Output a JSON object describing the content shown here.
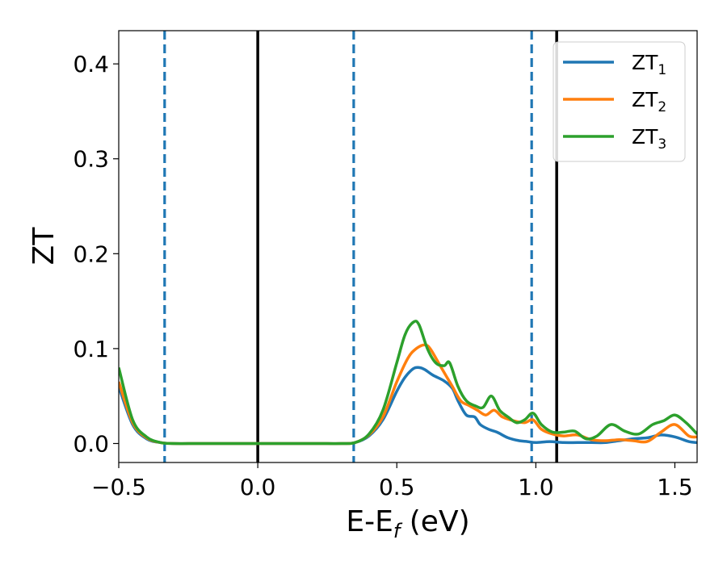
{
  "chart_data": {
    "type": "line",
    "xlabel": {
      "base": "E-E",
      "sub": "f",
      "suffix": " (eV)"
    },
    "ylabel": "ZT",
    "xlim": [
      -0.5,
      1.58
    ],
    "ylim": [
      -0.02,
      0.435
    ],
    "x_ticks": [
      -0.5,
      0.0,
      0.5,
      1.0,
      1.5
    ],
    "x_tick_labels": [
      "−0.5",
      "0.0",
      "0.5",
      "1.0",
      "1.5"
    ],
    "y_ticks": [
      0.0,
      0.1,
      0.2,
      0.3,
      0.4
    ],
    "y_tick_labels": [
      "0.0",
      "0.1",
      "0.2",
      "0.3",
      "0.4"
    ],
    "grid": false,
    "legend_position": "top-right",
    "vlines": [
      {
        "x": -0.335,
        "style": "dashed",
        "color": "#1f77b4"
      },
      {
        "x": 0.0,
        "style": "solid",
        "color": "#000000"
      },
      {
        "x": 0.345,
        "style": "dashed",
        "color": "#1f77b4"
      },
      {
        "x": 0.985,
        "style": "dashed",
        "color": "#1f77b4"
      },
      {
        "x": 1.075,
        "style": "solid",
        "color": "#000000"
      }
    ],
    "series": [
      {
        "name": "ZT",
        "name_sub": "1",
        "color": "#1f77b4",
        "x": [
          -0.5,
          -0.45,
          -0.4,
          -0.35,
          -0.3,
          -0.2,
          0.0,
          0.2,
          0.3,
          0.35,
          0.4,
          0.45,
          0.5,
          0.53,
          0.56,
          0.58,
          0.6,
          0.63,
          0.67,
          0.7,
          0.72,
          0.75,
          0.78,
          0.8,
          0.83,
          0.86,
          0.9,
          0.94,
          0.97,
          1.0,
          1.05,
          1.1,
          1.15,
          1.2,
          1.25,
          1.3,
          1.35,
          1.4,
          1.45,
          1.5,
          1.55,
          1.58
        ],
        "y": [
          0.06,
          0.02,
          0.005,
          0.001,
          0.0,
          0.0,
          0.0,
          0.0,
          0.0,
          0.001,
          0.008,
          0.025,
          0.055,
          0.07,
          0.079,
          0.08,
          0.078,
          0.072,
          0.066,
          0.058,
          0.045,
          0.03,
          0.028,
          0.02,
          0.015,
          0.012,
          0.006,
          0.003,
          0.002,
          0.001,
          0.002,
          0.001,
          0.001,
          0.001,
          0.001,
          0.003,
          0.005,
          0.006,
          0.009,
          0.007,
          0.002,
          0.001
        ]
      },
      {
        "name": "ZT",
        "name_sub": "2",
        "color": "#ff7f0e",
        "x": [
          -0.5,
          -0.45,
          -0.4,
          -0.35,
          -0.3,
          -0.2,
          0.0,
          0.2,
          0.3,
          0.35,
          0.4,
          0.45,
          0.5,
          0.54,
          0.57,
          0.6,
          0.62,
          0.65,
          0.68,
          0.7,
          0.73,
          0.76,
          0.79,
          0.82,
          0.85,
          0.88,
          0.92,
          0.96,
          0.99,
          1.02,
          1.06,
          1.1,
          1.15,
          1.2,
          1.25,
          1.3,
          1.35,
          1.4,
          1.45,
          1.5,
          1.55,
          1.58
        ],
        "y": [
          0.065,
          0.022,
          0.006,
          0.001,
          0.0,
          0.0,
          0.0,
          0.0,
          0.0,
          0.001,
          0.009,
          0.028,
          0.065,
          0.09,
          0.1,
          0.104,
          0.1,
          0.085,
          0.07,
          0.06,
          0.045,
          0.04,
          0.035,
          0.03,
          0.035,
          0.028,
          0.024,
          0.022,
          0.025,
          0.015,
          0.01,
          0.008,
          0.009,
          0.004,
          0.003,
          0.004,
          0.003,
          0.002,
          0.012,
          0.02,
          0.008,
          0.007
        ]
      },
      {
        "name": "ZT",
        "name_sub": "3",
        "color": "#2ca02c",
        "x": [
          -0.5,
          -0.45,
          -0.4,
          -0.35,
          -0.3,
          -0.2,
          0.0,
          0.2,
          0.3,
          0.35,
          0.4,
          0.45,
          0.5,
          0.53,
          0.56,
          0.58,
          0.61,
          0.64,
          0.67,
          0.69,
          0.72,
          0.75,
          0.78,
          0.81,
          0.84,
          0.87,
          0.9,
          0.93,
          0.96,
          0.99,
          1.02,
          1.06,
          1.1,
          1.14,
          1.18,
          1.22,
          1.27,
          1.32,
          1.37,
          1.42,
          1.46,
          1.5,
          1.54,
          1.58
        ],
        "y": [
          0.08,
          0.025,
          0.007,
          0.001,
          0.0,
          0.0,
          0.0,
          0.0,
          0.0,
          0.001,
          0.01,
          0.035,
          0.085,
          0.115,
          0.128,
          0.125,
          0.1,
          0.085,
          0.082,
          0.085,
          0.06,
          0.045,
          0.04,
          0.038,
          0.05,
          0.035,
          0.028,
          0.022,
          0.025,
          0.032,
          0.02,
          0.012,
          0.012,
          0.013,
          0.005,
          0.008,
          0.02,
          0.013,
          0.01,
          0.02,
          0.024,
          0.03,
          0.022,
          0.01
        ]
      }
    ]
  }
}
